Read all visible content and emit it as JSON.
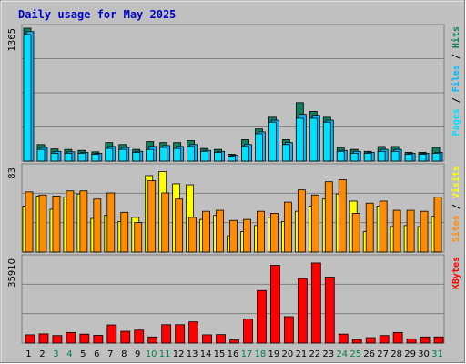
{
  "title": "Daily usage for May 2025",
  "colors": {
    "title": "#0000cc",
    "background": "#c0c0c0",
    "frame_light": "#ffffff",
    "frame_dark": "#808080",
    "grid": "#808080",
    "hits": "#0f7f5f",
    "files": "#00b8ff",
    "pages": "#00e0ff",
    "visits": "#ffff00",
    "sites": "#ff8c00",
    "kbytes": "#ff0000",
    "weekday_label": "#000000",
    "weekend_label": "#00804a"
  },
  "chart_data": {
    "type": "bar",
    "categories": [
      "1",
      "2",
      "3",
      "4",
      "5",
      "6",
      "7",
      "8",
      "9",
      "10",
      "11",
      "12",
      "13",
      "14",
      "15",
      "16",
      "17",
      "18",
      "19",
      "20",
      "21",
      "22",
      "23",
      "24",
      "25",
      "26",
      "27",
      "28",
      "29",
      "30",
      "31"
    ],
    "weekend_days": [
      "3",
      "4",
      "10",
      "11",
      "17",
      "18",
      "24",
      "25",
      "31"
    ],
    "panels": [
      {
        "name": "hits",
        "max_label": "1365",
        "legend": [
          "Pages",
          "Files",
          "Hits"
        ],
        "ylim": [
          0,
          1365
        ],
        "series": [
          {
            "name": "Hits",
            "values": [
              1365,
              170,
              125,
              120,
              110,
              95,
              190,
              170,
              120,
              200,
              190,
              190,
              210,
              130,
              120,
              70,
              220,
              330,
              450,
              220,
              600,
              510,
              450,
              140,
              120,
              100,
              150,
              150,
              90,
              90,
              140
            ]
          },
          {
            "name": "Files",
            "values": [
              1330,
              140,
              100,
              95,
              90,
              80,
              150,
              140,
              100,
              150,
              160,
              150,
              170,
              110,
              100,
              60,
              170,
              300,
              420,
              190,
              480,
              470,
              420,
              110,
              100,
              90,
              120,
              120,
              80,
              80,
              90
            ]
          },
          {
            "name": "Pages",
            "values": [
              1300,
              120,
              80,
              80,
              80,
              70,
              130,
              120,
              90,
              120,
              140,
              130,
              150,
              100,
              90,
              50,
              150,
              280,
              400,
              170,
              440,
              440,
              400,
              100,
              80,
              80,
              100,
              100,
              70,
              70,
              80
            ]
          }
        ]
      },
      {
        "name": "visits",
        "max_label": "83",
        "legend": [
          "Sites",
          "Visits"
        ],
        "ylim": [
          0,
          83
        ],
        "series": [
          {
            "name": "Visits",
            "values": [
              45,
              55,
              42,
              54,
              57,
              33,
              36,
              30,
              34,
              75,
              79,
              67,
              66,
              32,
              36,
              16,
              20,
              26,
              34,
              30,
              40,
              45,
              52,
              57,
              50,
              20,
              45,
              25,
              26,
              25,
              35
            ]
          },
          {
            "name": "Sites",
            "values": [
              59,
              56,
              55,
              60,
              60,
              52,
              58,
              39,
              29,
              70,
              58,
              52,
              34,
              40,
              41,
              31,
              32,
              40,
              38,
              49,
              61,
              56,
              69,
              71,
              38,
              48,
              50,
              41,
              41,
              40,
              54
            ]
          }
        ]
      },
      {
        "name": "kbytes",
        "max_label": "35910",
        "legend": [
          "KBytes"
        ],
        "ylim": [
          0,
          35910
        ],
        "series": [
          {
            "name": "KBytes",
            "values": [
              3500,
              3900,
              3200,
              4500,
              3800,
              3300,
              7700,
              5000,
              5500,
              2600,
              7800,
              7800,
              9000,
              3500,
              3600,
              1300,
              10200,
              22300,
              33000,
              11200,
              27400,
              34000,
              28000,
              3800,
              1500,
              2300,
              3200,
              4500,
              1800,
              2600,
              2600
            ]
          }
        ]
      }
    ]
  }
}
